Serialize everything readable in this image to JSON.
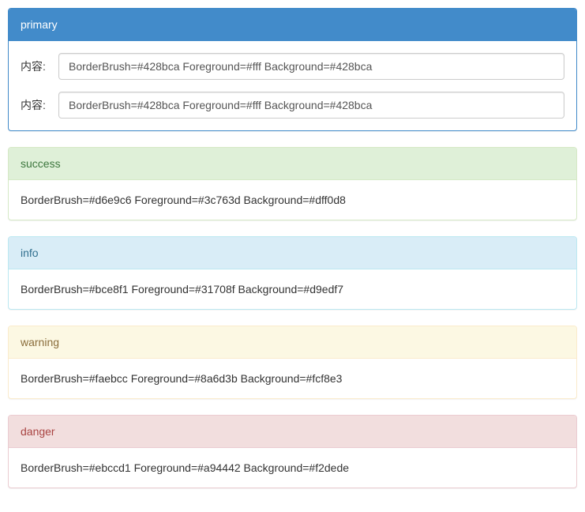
{
  "panels": {
    "primary": {
      "heading": "primary",
      "border_color": "#428bca",
      "heading_bg": "#428bca",
      "heading_fg": "#fff",
      "form": {
        "label_1": "内容:",
        "input_1_value": "BorderBrush=#428bca Foreground=#fff Background=#428bca",
        "label_2": "内容:",
        "input_2_value": "BorderBrush=#428bca Foreground=#fff Background=#428bca"
      }
    },
    "success": {
      "heading": "success",
      "border_color": "#d6e9c6",
      "heading_bg": "#dff0d8",
      "heading_fg": "#3c763d",
      "body_text": "BorderBrush=#d6e9c6 Foreground=#3c763d Background=#dff0d8"
    },
    "info": {
      "heading": "info",
      "border_color": "#bce8f1",
      "heading_bg": "#d9edf7",
      "heading_fg": "#31708f",
      "body_text": "BorderBrush=#bce8f1 Foreground=#31708f Background=#d9edf7"
    },
    "warning": {
      "heading": "warning",
      "border_color": "#faebcc",
      "heading_bg": "#fcf8e3",
      "heading_fg": "#8a6d3b",
      "body_text": "BorderBrush=#faebcc Foreground=#8a6d3b Background=#fcf8e3"
    },
    "danger": {
      "heading": "danger",
      "border_color": "#ebccd1",
      "heading_bg": "#f2dede",
      "heading_fg": "#a94442",
      "body_text": "BorderBrush=#ebccd1 Foreground=#a94442 Background=#f2dede"
    }
  }
}
